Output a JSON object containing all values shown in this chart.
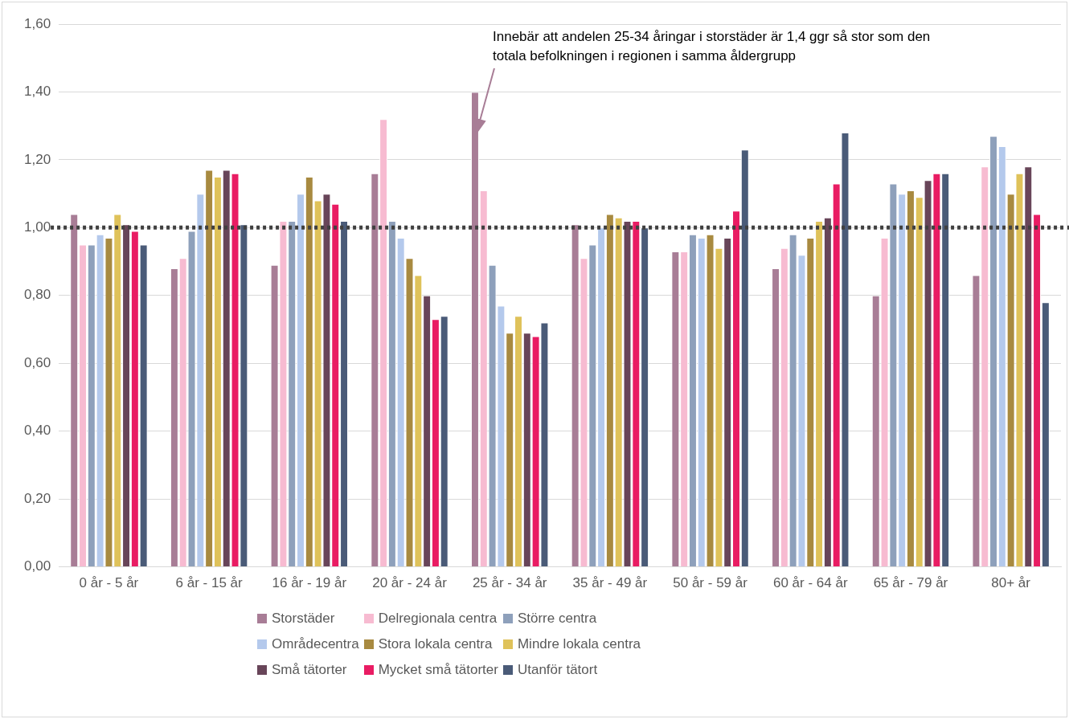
{
  "chart_data": {
    "type": "bar",
    "categories": [
      "0 år - 5 år",
      "6 år - 15 år",
      "16 år - 19 år",
      "20 år - 24 år",
      "25 år - 34 år",
      "35 år - 49 år",
      "50 år - 59 år",
      "60 år - 64 år",
      "65 år - 79 år",
      "80+ år"
    ],
    "series": [
      {
        "name": "Storstäder",
        "color": "#a87d96",
        "values": [
          1.04,
          0.88,
          0.89,
          1.16,
          1.4,
          1.01,
          0.93,
          0.88,
          0.8,
          0.86
        ]
      },
      {
        "name": "Delregionala centra",
        "color": "#f7bbd1",
        "values": [
          0.95,
          0.91,
          1.02,
          1.32,
          1.11,
          0.91,
          0.93,
          0.94,
          0.97,
          1.18
        ]
      },
      {
        "name": "Större centra",
        "color": "#8ea0bb",
        "values": [
          0.95,
          0.99,
          1.02,
          1.02,
          0.89,
          0.95,
          0.98,
          0.98,
          1.13,
          1.27
        ]
      },
      {
        "name": "Områdecentra",
        "color": "#b4c9ec",
        "values": [
          0.98,
          1.1,
          1.1,
          0.97,
          0.77,
          1.0,
          0.97,
          0.92,
          1.1,
          1.24
        ]
      },
      {
        "name": "Stora lokala centra",
        "color": "#a88a40",
        "values": [
          0.97,
          1.17,
          1.15,
          0.91,
          0.69,
          1.04,
          0.98,
          0.97,
          1.11,
          1.1
        ]
      },
      {
        "name": "Mindre lokala centra",
        "color": "#dfc25a",
        "values": [
          1.04,
          1.15,
          1.08,
          0.86,
          0.74,
          1.03,
          0.94,
          1.02,
          1.09,
          1.16
        ]
      },
      {
        "name": "Små tätorter",
        "color": "#684559",
        "values": [
          1.01,
          1.17,
          1.1,
          0.8,
          0.69,
          1.02,
          0.97,
          1.03,
          1.14,
          1.18
        ]
      },
      {
        "name": "Mycket små tätorter",
        "color": "#e91c63",
        "values": [
          0.99,
          1.16,
          1.07,
          0.73,
          0.68,
          1.02,
          1.05,
          1.13,
          1.16,
          1.04
        ]
      },
      {
        "name": "Utanför tätort",
        "color": "#4a5b78",
        "values": [
          0.95,
          1.01,
          1.02,
          0.74,
          0.72,
          1.0,
          1.23,
          1.28,
          1.16,
          0.78
        ]
      }
    ],
    "ylim": [
      0,
      1.6
    ],
    "yticks": [
      {
        "value": 0,
        "label": "0,00"
      },
      {
        "value": 0.2,
        "label": "0,20"
      },
      {
        "value": 0.4,
        "label": "0,40"
      },
      {
        "value": 0.6,
        "label": "0,60"
      },
      {
        "value": 0.8,
        "label": "0,80"
      },
      {
        "value": 1,
        "label": "1,00"
      },
      {
        "value": 1.2,
        "label": "1,20"
      },
      {
        "value": 1.4,
        "label": "1,40"
      },
      {
        "value": 1.6,
        "label": "1,60"
      }
    ],
    "grid": "y",
    "legend": "bottom",
    "ref_lines": [
      {
        "axis": "y",
        "value": 1,
        "color": "#404040",
        "line_style": "dotted"
      }
    ],
    "annotations": [
      "Innebär att andelen 25-34 åringar i storstäder är 1,4 ggr så stor som den totala befolkningen i regionen i samma åldergrupp"
    ]
  }
}
